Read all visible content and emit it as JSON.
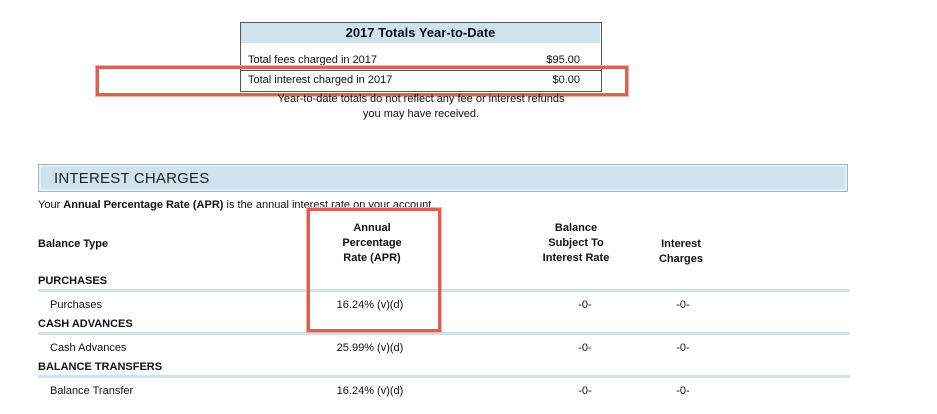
{
  "ytd": {
    "title": "2017 Totals Year-to-Date",
    "rows": [
      {
        "label": "Total fees charged in 2017",
        "value": "$95.00"
      },
      {
        "label": "Total interest charged in 2017",
        "value": "$0.00"
      }
    ],
    "note_line1": "Year-to-date totals do not reflect any fee or interest refunds",
    "note_line2": "you may have received."
  },
  "interest": {
    "header": "INTEREST CHARGES",
    "intro_prefix": "Your ",
    "intro_bold": "Annual Percentage Rate (APR)",
    "intro_suffix": " is the annual interest rate on your account.",
    "columns": {
      "balance_type": "Balance Type",
      "apr_line1": "Annual",
      "apr_line2": "Percentage",
      "apr_line3": "Rate (APR)",
      "subject_line1": "Balance",
      "subject_line2": "Subject To",
      "subject_line3": "Interest Rate",
      "charges_line1": "Interest",
      "charges_line2": "Charges"
    },
    "sections": [
      {
        "title": "PURCHASES",
        "row": {
          "label": "Purchases",
          "apr": "16.24% (v)(d)",
          "balance": "-0-",
          "charges": "-0-"
        }
      },
      {
        "title": "CASH ADVANCES",
        "row": {
          "label": "Cash Advances",
          "apr": "25.99% (v)(d)",
          "balance": "-0-",
          "charges": "-0-"
        }
      },
      {
        "title": "BALANCE TRANSFERS",
        "row": {
          "label": "Balance Transfer",
          "apr": "16.24% (v)(d)",
          "balance": "-0-",
          "charges": "-0-"
        }
      }
    ]
  },
  "colors": {
    "header_bg": "#cfe3ef",
    "highlight": "#e06050"
  }
}
